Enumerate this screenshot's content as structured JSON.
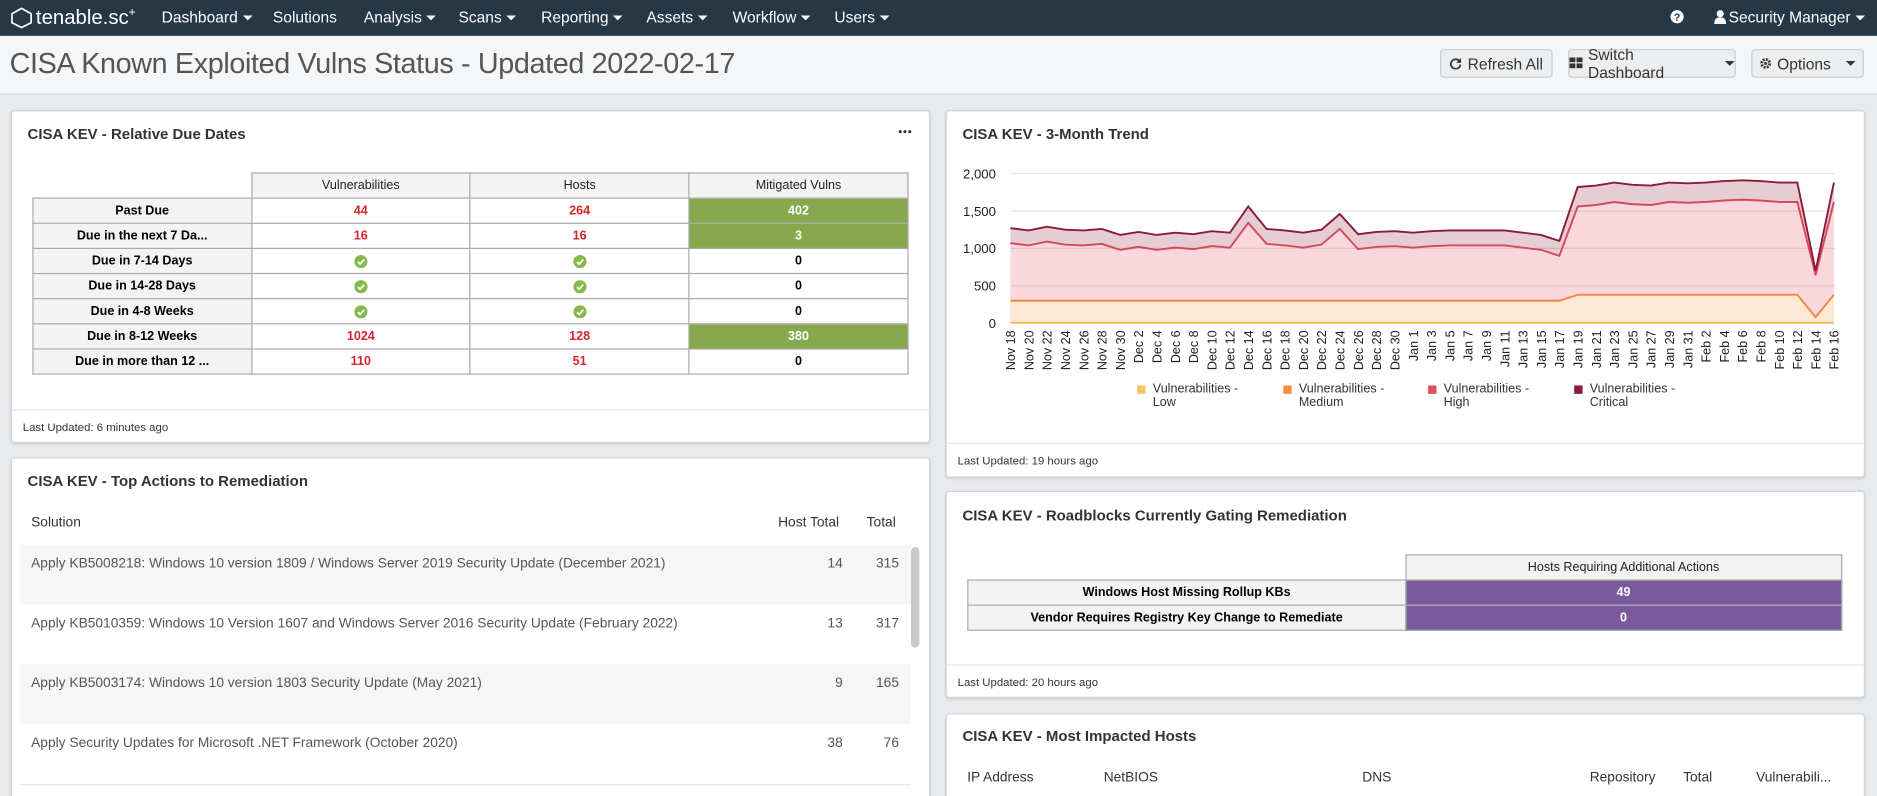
{
  "nav": {
    "logo": "tenable.sc",
    "logo_sup": "+",
    "menu": [
      "Dashboard",
      "Solutions",
      "Analysis",
      "Scans",
      "Reporting",
      "Assets",
      "Workflow",
      "Users"
    ],
    "user": "Security Manager"
  },
  "header": {
    "title": "CISA Known Exploited Vulns Status - Updated 2022-02-17",
    "buttons": [
      "Refresh All",
      "Switch Dashboard",
      "Options"
    ]
  },
  "due_dates": {
    "title": "CISA KEV - Relative Due Dates",
    "columns": [
      "Vulnerabilities",
      "Hosts",
      "Mitigated Vulns"
    ],
    "rows": [
      {
        "label": "Past Due",
        "cells": [
          44,
          264,
          402
        ]
      },
      {
        "label": "Due in the next 7 Da...",
        "cells": [
          16,
          16,
          3
        ]
      },
      {
        "label": "Due in 7-14 Days",
        "cells": [
          null,
          null,
          0
        ]
      },
      {
        "label": "Due in 14-28 Days",
        "cells": [
          null,
          null,
          0
        ]
      },
      {
        "label": "Due in 4-8 Weeks",
        "cells": [
          null,
          null,
          0
        ]
      },
      {
        "label": "Due in 8-12 Weeks",
        "cells": [
          1024,
          128,
          380
        ]
      },
      {
        "label": "Due in more than 12 ...",
        "cells": [
          110,
          51,
          0
        ]
      }
    ],
    "footer": "Last Updated: 6 minutes ago"
  },
  "top_actions": {
    "title": "CISA KEV - Top Actions to Remediation",
    "columns": [
      "Solution",
      "Host Total",
      "Total"
    ],
    "rows": [
      [
        "Apply KB5008218: Windows 10 version 1809 / Windows Server 2019 Security Update (December 2021)",
        14,
        315
      ],
      [
        "Apply KB5010359: Windows 10 Version 1607 and Windows Server 2016 Security Update (February 2022)",
        13,
        317
      ],
      [
        "Apply KB5003174: Windows 10 version 1803 Security Update (May 2021)",
        9,
        165
      ],
      [
        "Apply Security Updates for Microsoft .NET Framework (October 2020)",
        38,
        76
      ]
    ]
  },
  "trend": {
    "title": "CISA KEV - 3-Month Trend",
    "footer": "Last Updated: 19 hours ago"
  },
  "chart_data": {
    "type": "area",
    "stacked": true,
    "grid": true,
    "categories": [
      "Nov 18",
      "Nov 20",
      "Nov 22",
      "Nov 24",
      "Nov 26",
      "Nov 28",
      "Nov 30",
      "Dec 2",
      "Dec 4",
      "Dec 6",
      "Dec 8",
      "Dec 10",
      "Dec 12",
      "Dec 14",
      "Dec 16",
      "Dec 18",
      "Dec 20",
      "Dec 22",
      "Dec 24",
      "Dec 26",
      "Dec 28",
      "Dec 30",
      "Jan 1",
      "Jan 3",
      "Jan 5",
      "Jan 7",
      "Jan 9",
      "Jan 11",
      "Jan 13",
      "Jan 15",
      "Jan 17",
      "Jan 19",
      "Jan 21",
      "Jan 23",
      "Jan 25",
      "Jan 27",
      "Jan 29",
      "Jan 31",
      "Feb 2",
      "Feb 4",
      "Feb 6",
      "Feb 8",
      "Feb 10",
      "Feb 12",
      "Feb 14",
      "Feb 16"
    ],
    "series": [
      {
        "name": "Vulnerabilities - Low",
        "color": "#fbc45e",
        "values": [
          5,
          5,
          5,
          5,
          5,
          5,
          5,
          5,
          5,
          5,
          5,
          5,
          5,
          5,
          5,
          5,
          5,
          5,
          5,
          5,
          5,
          5,
          5,
          5,
          5,
          5,
          5,
          5,
          5,
          5,
          5,
          5,
          5,
          5,
          5,
          5,
          5,
          5,
          5,
          5,
          5,
          5,
          5,
          5,
          5,
          5
        ]
      },
      {
        "name": "Vulnerabilities - Medium",
        "color": "#f5903f",
        "values": [
          295,
          295,
          295,
          295,
          295,
          295,
          295,
          295,
          295,
          295,
          295,
          295,
          295,
          295,
          295,
          295,
          295,
          295,
          295,
          295,
          295,
          295,
          295,
          295,
          295,
          295,
          295,
          295,
          295,
          295,
          295,
          375,
          375,
          375,
          375,
          375,
          375,
          375,
          375,
          375,
          375,
          375,
          375,
          375,
          75,
          375
        ]
      },
      {
        "name": "Vulnerabilities - High",
        "color": "#e04f5f",
        "values": [
          770,
          740,
          790,
          750,
          740,
          760,
          680,
          720,
          680,
          710,
          690,
          730,
          710,
          1040,
          760,
          740,
          710,
          750,
          960,
          690,
          720,
          730,
          710,
          730,
          740,
          740,
          740,
          740,
          710,
          680,
          600,
          1180,
          1200,
          1240,
          1210,
          1200,
          1240,
          1230,
          1240,
          1260,
          1270,
          1260,
          1240,
          1240,
          560,
          1240
        ]
      },
      {
        "name": "Vulnerabilities - Critical",
        "color": "#8b1a3b",
        "values": [
          200,
          200,
          200,
          200,
          200,
          200,
          200,
          200,
          200,
          200,
          200,
          200,
          200,
          220,
          200,
          200,
          200,
          200,
          200,
          200,
          200,
          200,
          200,
          200,
          200,
          200,
          200,
          200,
          200,
          200,
          200,
          260,
          260,
          260,
          260,
          260,
          260,
          260,
          260,
          260,
          260,
          260,
          260,
          260,
          60,
          260
        ]
      }
    ],
    "ylim": [
      0,
      2000
    ],
    "yticks": [
      0,
      500,
      {
        "value": 1000,
        "label": "1,000"
      },
      {
        "value": 1500,
        "label": "1,500"
      },
      {
        "value": 2000,
        "label": "2,000"
      }
    ]
  },
  "roadblocks": {
    "title": "CISA KEV - Roadblocks Currently Gating Remediation",
    "column": "Hosts Requiring Additional Actions",
    "rows": [
      {
        "label": "Windows Host Missing Rollup KBs",
        "value": 49
      },
      {
        "label": "Vendor Requires Registry Key Change to Remediate",
        "value": 0
      }
    ],
    "footer": "Last Updated: 20 hours ago"
  },
  "impacted_hosts": {
    "title": "CISA KEV - Most Impacted Hosts",
    "columns": [
      "IP Address",
      "NetBIOS",
      "DNS",
      "Repository",
      "Total",
      "Vulnerabili..."
    ]
  }
}
